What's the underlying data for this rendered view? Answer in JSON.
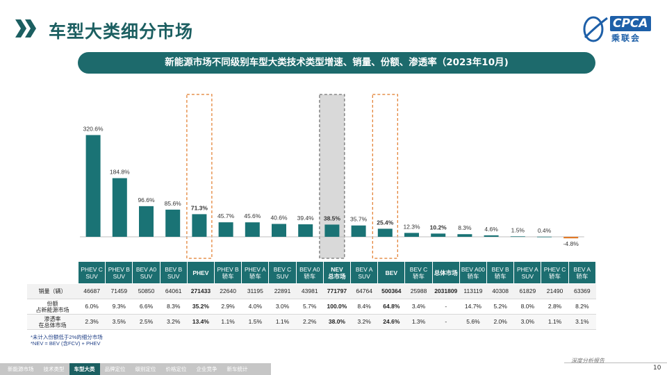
{
  "page": {
    "title": "车型大类细分市场",
    "banner": "新能源市场不同级别车型大类技术类型增速、销量、份额、渗透率（2023年10月)",
    "logo_text": "CPCA",
    "logo_sub": "乘联会"
  },
  "chart_data": {
    "type": "bar",
    "categories": [
      "PHEV C SUV",
      "PHEV B SUV",
      "BEV A0 SUV",
      "BEV B SUV",
      "PHEV",
      "PHEV B 轿车",
      "PHEV A 轿车",
      "BEV C SUV",
      "BEV A0 轿车",
      "NEV 总市场",
      "BEV A SUV",
      "BEV",
      "BEV C 轿车",
      "总体市场",
      "BEV A00 轿车",
      "BEV B 轿车",
      "PHEV A SUV",
      "PHEV C 轿车",
      "BEV A 轿车"
    ],
    "values": [
      320.6,
      184.8,
      96.6,
      85.6,
      71.3,
      45.7,
      45.6,
      40.6,
      39.4,
      38.5,
      35.7,
      25.4,
      12.3,
      10.2,
      8.3,
      4.6,
      1.5,
      0.4,
      -4.8
    ],
    "labels": [
      "320.6%",
      "184.8%",
      "96.6%",
      "85.6%",
      "71.3%",
      "45.7%",
      "45.6%",
      "40.6%",
      "39.4%",
      "38.5%",
      "35.7%",
      "25.4%",
      "12.3%",
      "10.2%",
      "8.3%",
      "4.6%",
      "1.5%",
      "0.4%",
      "-4.8%"
    ],
    "bold_labels": [
      4,
      9,
      11,
      13
    ],
    "highlight_dashed": [
      4,
      11
    ],
    "highlight_shaded": [
      9
    ],
    "colors": {
      "bar": "#1a7375",
      "bar_negative": "#e07a28",
      "shade": "#d9d9d9",
      "dash": "#e07a28"
    }
  },
  "table": {
    "headers": [
      [
        "PHEV C",
        "SUV"
      ],
      [
        "PHEV B",
        "SUV"
      ],
      [
        "BEV A0",
        "SUV"
      ],
      [
        "BEV B",
        "SUV"
      ],
      [
        "PHEV",
        ""
      ],
      [
        "PHEV B",
        "轿车"
      ],
      [
        "PHEV A",
        "轿车"
      ],
      [
        "BEV C",
        "SUV"
      ],
      [
        "BEV A0",
        "轿车"
      ],
      [
        "NEV",
        "总市场"
      ],
      [
        "BEV A",
        "SUV"
      ],
      [
        "BEV",
        ""
      ],
      [
        "BEV C",
        "轿车"
      ],
      [
        "总体市场",
        ""
      ],
      [
        "BEV A00",
        "轿车"
      ],
      [
        "BEV B",
        "轿车"
      ],
      [
        "PHEV A",
        "SUV"
      ],
      [
        "PHEV C",
        "轿车"
      ],
      [
        "BEV A",
        "轿车"
      ]
    ],
    "bold_cols": [
      4,
      9,
      11,
      13
    ],
    "rows": [
      {
        "label": [
          "销量（辆）"
        ],
        "values": [
          "46687",
          "71459",
          "50850",
          "64061",
          "271433",
          "22640",
          "31195",
          "22891",
          "43981",
          "771797",
          "64764",
          "500364",
          "25988",
          "2031809",
          "113119",
          "40308",
          "61829",
          "21490",
          "63369"
        ]
      },
      {
        "label": [
          "份额",
          "占新能源市场"
        ],
        "values": [
          "6.0%",
          "9.3%",
          "6.6%",
          "8.3%",
          "35.2%",
          "2.9%",
          "4.0%",
          "3.0%",
          "5.7%",
          "100.0%",
          "8.4%",
          "64.8%",
          "3.4%",
          "-",
          "14.7%",
          "5.2%",
          "8.0%",
          "2.8%",
          "8.2%"
        ]
      },
      {
        "label": [
          "渗透率",
          "在总体市场"
        ],
        "values": [
          "2.3%",
          "3.5%",
          "2.5%",
          "3.2%",
          "13.4%",
          "1.1%",
          "1.5%",
          "1.1%",
          "2.2%",
          "38.0%",
          "3.2%",
          "24.6%",
          "1.3%",
          "-",
          "5.6%",
          "2.0%",
          "3.0%",
          "1.1%",
          "3.1%"
        ]
      }
    ]
  },
  "notes": [
    "*未计入份额低于2%的细分市场",
    "*NEV = BEV (含FCV) + PHEV"
  ],
  "nav": [
    "新能源市场",
    "技术类型",
    "车型大类",
    "品牌定位",
    "级别定位",
    "价格定位",
    "企业竞争",
    "新车统计"
  ],
  "nav_active": 2,
  "footer": {
    "brand": "深度分析报告",
    "page_number": "10"
  }
}
